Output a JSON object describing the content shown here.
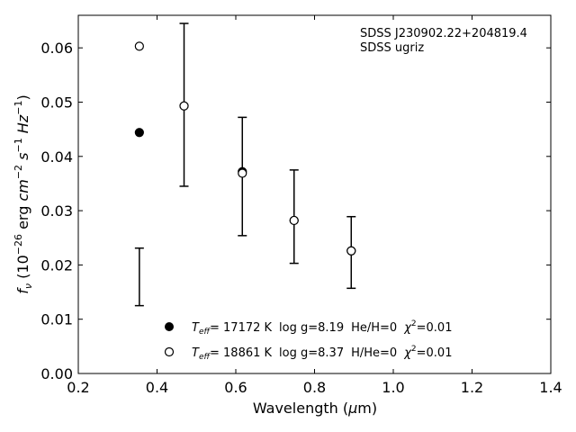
{
  "chart_data": {
    "type": "scatter",
    "xlabel_main": "Wavelength (",
    "xlabel_unit_greek": "μ",
    "xlabel_unit_rest": "m)",
    "ylabel": "f_ν (10^-26 erg cm^-2 s^-1 Hz^-1)",
    "xlim": [
      0.2,
      1.4
    ],
    "ylim": [
      0.0,
      0.066
    ],
    "x_ticks": [
      0.2,
      0.4,
      0.6,
      0.8,
      1.0,
      1.2,
      1.4
    ],
    "x_tick_labels": [
      "0.2",
      "0.4",
      "0.6",
      "0.8",
      "1.0",
      "1.2",
      "1.4"
    ],
    "y_ticks": [
      0.0,
      0.01,
      0.02,
      0.03,
      0.04,
      0.05,
      0.06
    ],
    "y_tick_labels": [
      "0.00",
      "0.01",
      "0.02",
      "0.03",
      "0.04",
      "0.05",
      "0.06"
    ],
    "grid": false,
    "annotation": {
      "name": "SDSS J230902.22+204819.4",
      "survey": "SDSS ugriz"
    },
    "observed": {
      "x": [
        0.3551,
        0.4686,
        0.6166,
        0.748,
        0.8932
      ],
      "y": [
        0.0178,
        0.0495,
        0.0363,
        0.0289,
        0.0223
      ],
      "yerr": [
        0.0053,
        0.015,
        0.0109,
        0.0086,
        0.0066
      ]
    },
    "series": [
      {
        "name": "T_eff= 17172 K  log g=8.19  He/H=0  χ^2=0.01",
        "marker": "filled-circle",
        "x": [
          0.3551,
          0.4686,
          0.6166,
          0.748,
          0.8932
        ],
        "y": [
          0.0444,
          0.0493,
          0.0372,
          0.0282,
          0.0226
        ]
      },
      {
        "name": "T_eff= 18861 K  log g=8.37  H/He=0  χ^2=0.01",
        "marker": "open-circle",
        "x": [
          0.3551,
          0.4686,
          0.6166,
          0.748,
          0.8932
        ],
        "y": [
          0.0603,
          0.0493,
          0.0369,
          0.0282,
          0.0226
        ]
      }
    ],
    "legend": {
      "placement": "lower-center",
      "entries": [
        {
          "teff_sym": "T",
          "teff_sub": "eff",
          "temp": "= 17172 K",
          "logg": "log g=8.19",
          "comp": "He/H=0",
          "chi_sym": "χ",
          "chi_sup": "2",
          "chi_val": "=0.01",
          "marker": "filled"
        },
        {
          "teff_sym": "T",
          "teff_sub": "eff",
          "temp": "= 18861 K",
          "logg": "log g=8.37",
          "comp": "H/He=0",
          "chi_sym": "χ",
          "chi_sup": "2",
          "chi_val": "=0.01",
          "marker": "open"
        }
      ]
    }
  }
}
